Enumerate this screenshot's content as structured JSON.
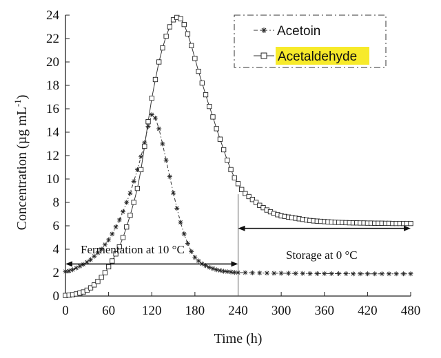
{
  "chart_data": {
    "type": "line",
    "xlabel": "Time (h)",
    "ylabel": "Concentration (µg mL-1)",
    "ylabel_main": "Concentration (µg mL",
    "ylabel_sup": "-1",
    "ylabel_tail": ")",
    "xlim": [
      0,
      480
    ],
    "ylim": [
      0,
      24
    ],
    "x_ticks": [
      0,
      60,
      120,
      180,
      240,
      300,
      360,
      420,
      480
    ],
    "y_ticks": [
      0,
      2,
      4,
      6,
      8,
      10,
      12,
      14,
      16,
      18,
      20,
      22,
      24
    ],
    "legend": {
      "position": "top-right",
      "entries": [
        "Acetoin",
        "Acetaldehyde"
      ]
    },
    "annotations": {
      "fermentation": "Fermentation at 10 °C",
      "storage": "Storage at 0 °C",
      "divider_x": 240,
      "fermentation_range": [
        0,
        240
      ],
      "storage_range": [
        240,
        480
      ],
      "arrow_y": 2.8
    },
    "series": [
      {
        "name": "Acetoin",
        "marker": "asterisk",
        "x": [
          0,
          5,
          10,
          15,
          20,
          25,
          30,
          35,
          40,
          45,
          50,
          55,
          60,
          65,
          70,
          75,
          80,
          85,
          90,
          95,
          100,
          105,
          110,
          115,
          120,
          125,
          130,
          135,
          140,
          145,
          150,
          155,
          160,
          165,
          170,
          175,
          180,
          185,
          190,
          195,
          200,
          205,
          210,
          215,
          220,
          225,
          230,
          235,
          240,
          250,
          260,
          270,
          280,
          290,
          300,
          310,
          320,
          330,
          340,
          350,
          360,
          370,
          380,
          390,
          400,
          410,
          420,
          430,
          440,
          450,
          460,
          470,
          480
        ],
        "y": [
          2.1,
          2.15,
          2.25,
          2.4,
          2.55,
          2.7,
          2.9,
          3.1,
          3.4,
          3.7,
          4.0,
          4.4,
          4.8,
          5.3,
          5.9,
          6.5,
          7.2,
          8.0,
          8.8,
          9.8,
          10.8,
          11.9,
          13.1,
          14.5,
          15.5,
          15.2,
          14.3,
          13.0,
          11.6,
          10.2,
          8.8,
          7.5,
          6.3,
          5.3,
          4.5,
          3.8,
          3.3,
          3.0,
          2.75,
          2.6,
          2.45,
          2.35,
          2.25,
          2.18,
          2.12,
          2.08,
          2.05,
          2.02,
          2.0,
          2.0,
          1.98,
          1.97,
          1.96,
          1.95,
          1.95,
          1.94,
          1.93,
          1.93,
          1.92,
          1.92,
          1.92,
          1.91,
          1.91,
          1.91,
          1.9,
          1.9,
          1.9,
          1.9,
          1.9,
          1.9,
          1.9,
          1.9,
          1.9
        ]
      },
      {
        "name": "Acetaldehyde",
        "marker": "square",
        "x": [
          0,
          5,
          10,
          15,
          20,
          25,
          30,
          35,
          40,
          45,
          50,
          55,
          60,
          65,
          70,
          75,
          80,
          85,
          90,
          95,
          100,
          105,
          110,
          115,
          120,
          125,
          130,
          135,
          140,
          145,
          150,
          155,
          160,
          165,
          170,
          175,
          180,
          185,
          190,
          195,
          200,
          205,
          210,
          215,
          220,
          225,
          230,
          235,
          240,
          245,
          250,
          255,
          260,
          265,
          270,
          275,
          280,
          285,
          290,
          295,
          300,
          305,
          310,
          315,
          320,
          325,
          330,
          335,
          340,
          345,
          350,
          355,
          360,
          365,
          370,
          375,
          380,
          385,
          390,
          395,
          400,
          405,
          410,
          415,
          420,
          425,
          430,
          435,
          440,
          445,
          450,
          455,
          460,
          465,
          470,
          475,
          480
        ],
        "y": [
          0.05,
          0.08,
          0.12,
          0.18,
          0.25,
          0.35,
          0.5,
          0.7,
          0.95,
          1.25,
          1.6,
          2.0,
          2.5,
          3.0,
          3.6,
          4.2,
          5.0,
          5.9,
          6.9,
          8.0,
          9.2,
          10.8,
          12.8,
          14.9,
          16.9,
          18.5,
          20.0,
          21.2,
          22.2,
          23.0,
          23.6,
          23.8,
          23.7,
          23.2,
          22.4,
          21.4,
          20.3,
          19.2,
          18.2,
          17.2,
          16.2,
          15.3,
          14.3,
          13.4,
          12.5,
          11.6,
          10.8,
          10.1,
          9.6,
          9.1,
          8.75,
          8.5,
          8.25,
          8.0,
          7.75,
          7.55,
          7.35,
          7.2,
          7.05,
          6.95,
          6.85,
          6.8,
          6.75,
          6.7,
          6.65,
          6.6,
          6.55,
          6.5,
          6.45,
          6.42,
          6.4,
          6.38,
          6.36,
          6.34,
          6.32,
          6.3,
          6.29,
          6.28,
          6.27,
          6.26,
          6.25,
          6.25,
          6.24,
          6.24,
          6.23,
          6.23,
          6.22,
          6.22,
          6.22,
          6.21,
          6.21,
          6.2,
          6.2,
          6.2,
          6.2,
          6.2,
          6.2
        ]
      }
    ]
  }
}
